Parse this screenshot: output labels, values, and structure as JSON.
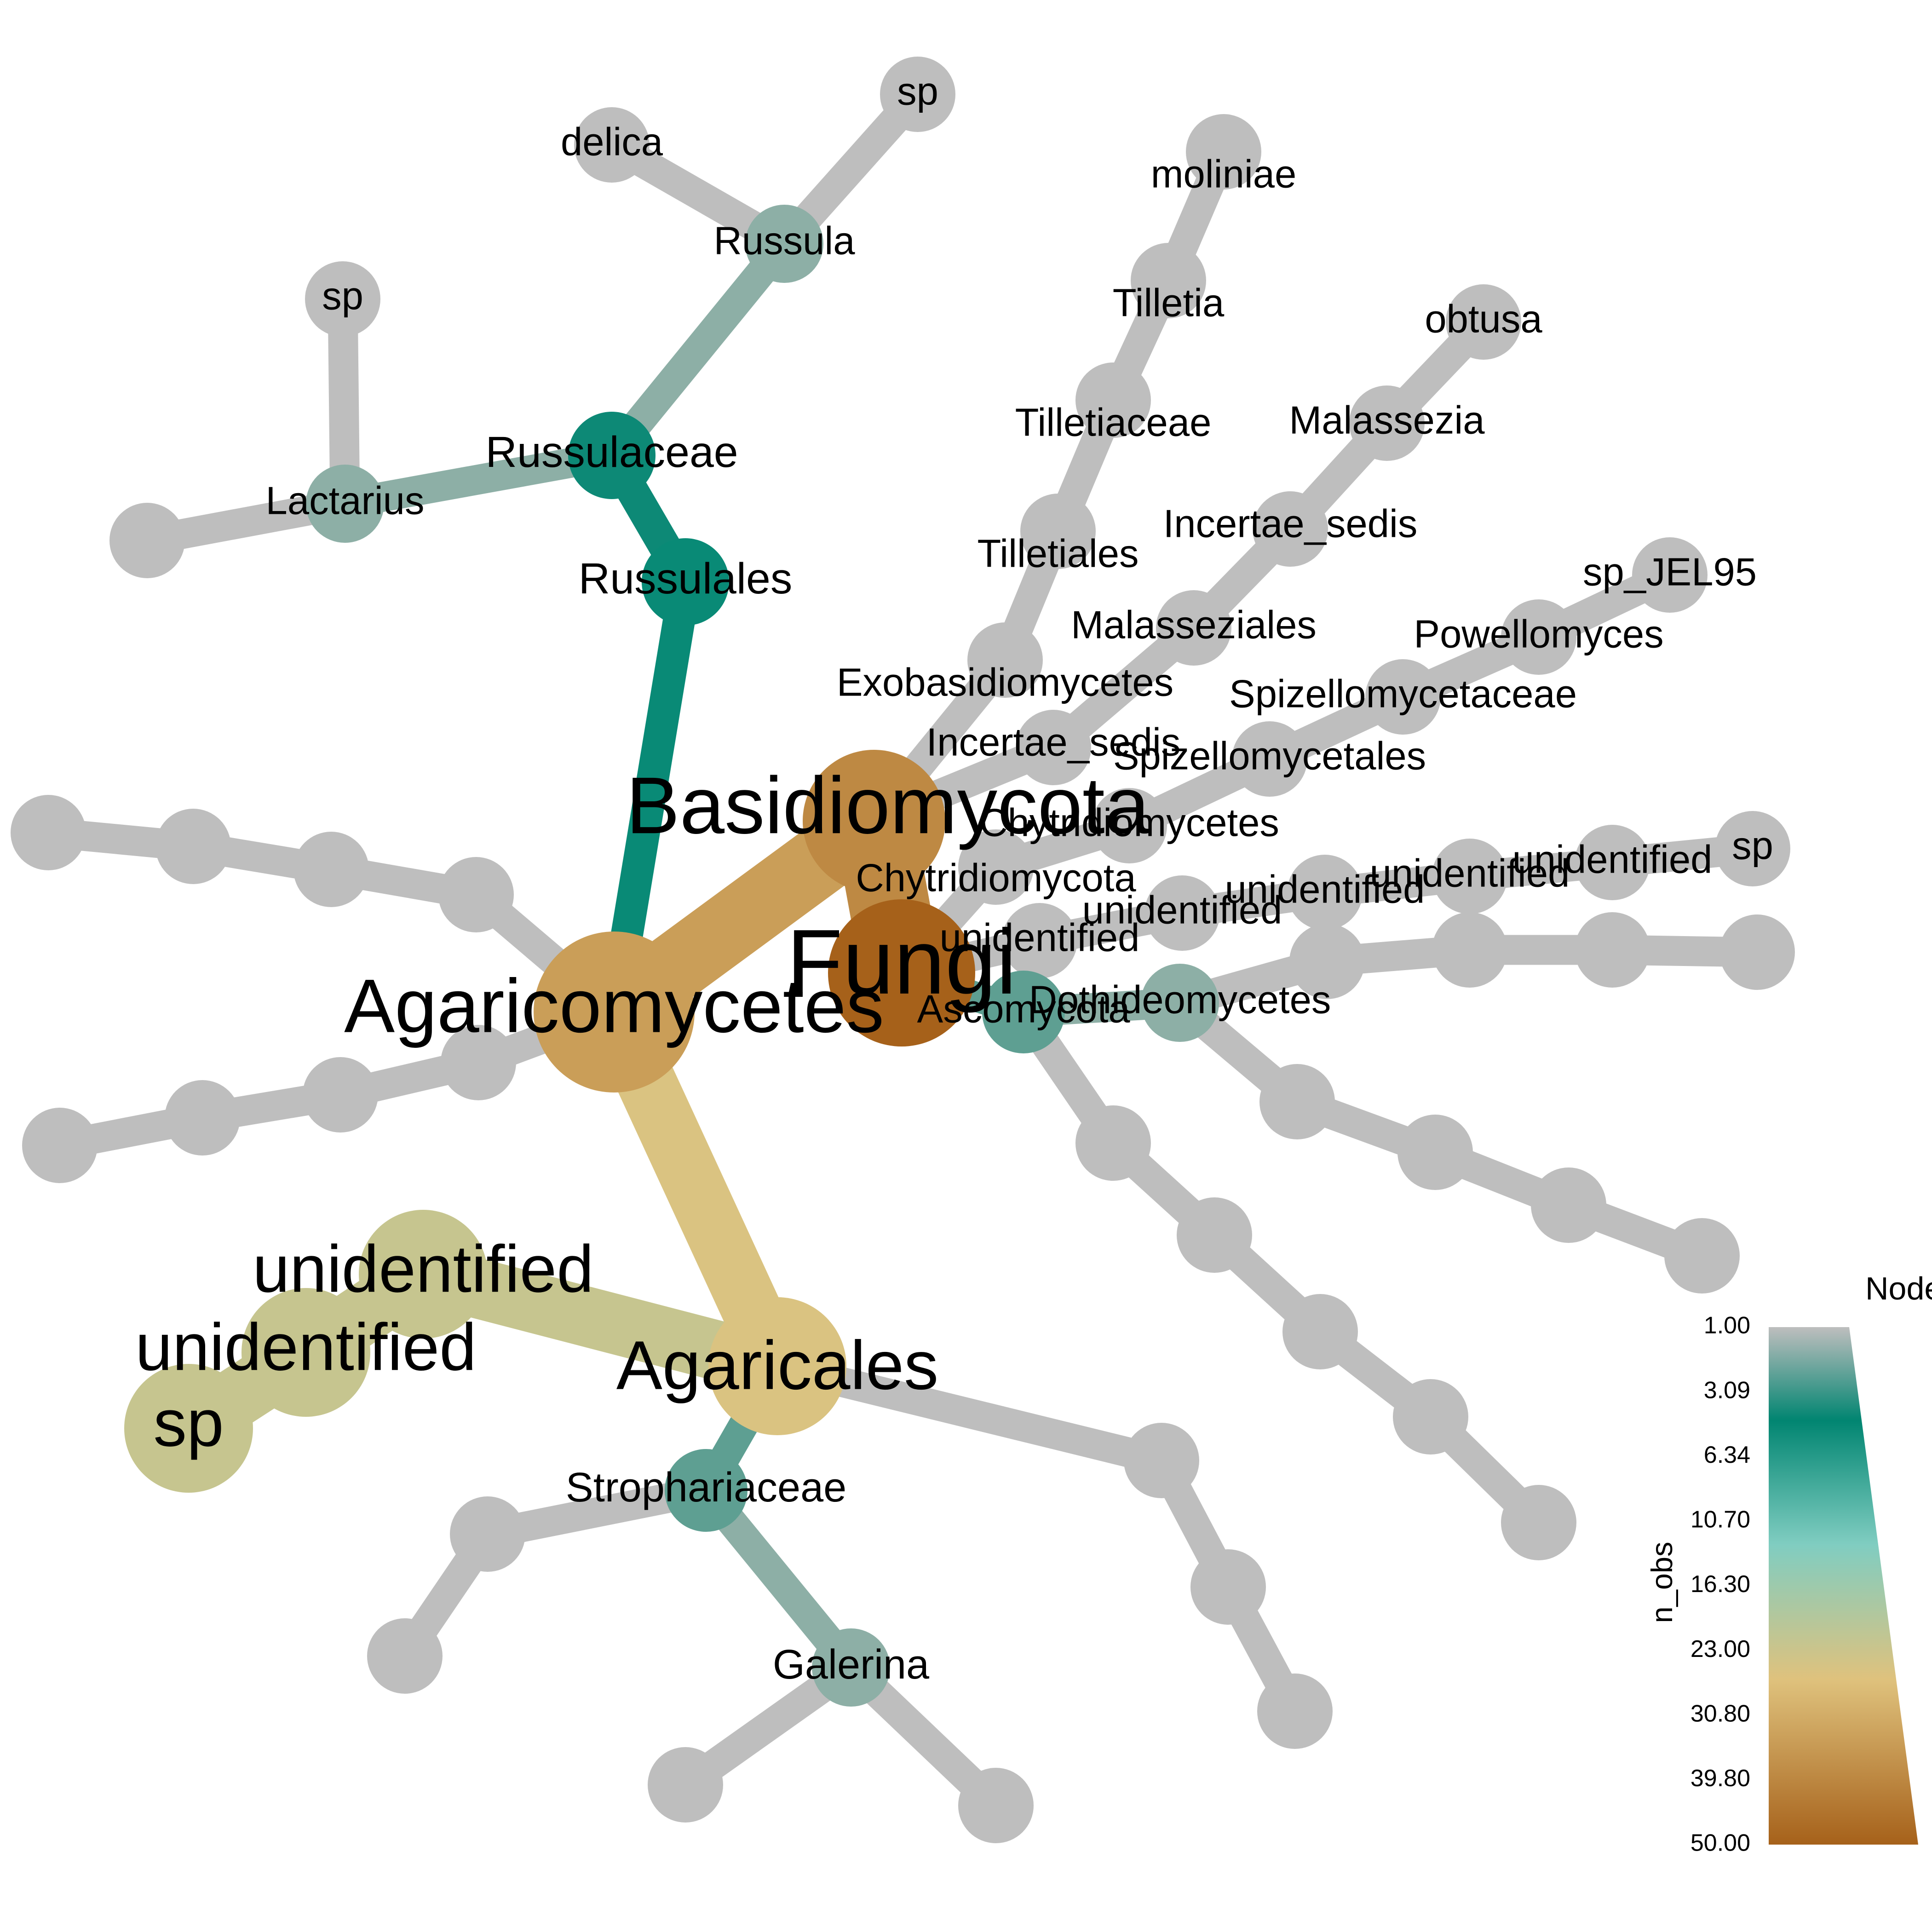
{
  "legend": {
    "title": "Nodes",
    "axis_label": "n_obs",
    "ticks": [
      "1.00",
      "3.09",
      "6.34",
      "10.70",
      "16.30",
      "23.00",
      "30.80",
      "39.80",
      "50.00"
    ],
    "gradient_colors": [
      "#bebebe",
      "#018571",
      "#80cdc1",
      "#dfc27d",
      "#a6611a"
    ]
  },
  "tree": {
    "nodes": [
      {
        "id": "fungi",
        "label": "Fungi",
        "n_obs": 50
      },
      {
        "id": "basidiomycota",
        "label": "Basidiomycota",
        "n_obs": 42
      },
      {
        "id": "agaricomycetes",
        "label": "Agaricomycetes",
        "n_obs": 38
      },
      {
        "id": "agaricales",
        "label": "Agaricales",
        "n_obs": 30
      },
      {
        "id": "unid_fam",
        "label": "unidentified",
        "n_obs": 27
      },
      {
        "id": "unid_gen",
        "label": "unidentified",
        "n_obs": 27
      },
      {
        "id": "sp_big",
        "label": "sp",
        "n_obs": 27
      },
      {
        "id": "russulales",
        "label": "Russulales",
        "n_obs": 7
      },
      {
        "id": "russulaceae",
        "label": "Russulaceae",
        "n_obs": 6
      },
      {
        "id": "russula",
        "label": "Russula",
        "n_obs": 2
      },
      {
        "id": "delica",
        "label": "delica",
        "n_obs": 1
      },
      {
        "id": "russula_sp",
        "label": "sp",
        "n_obs": 1
      },
      {
        "id": "lactarius",
        "label": "Lactarius",
        "n_obs": 2
      },
      {
        "id": "lactarius_sp",
        "label": "sp",
        "n_obs": 1
      },
      {
        "id": "lactarius_x",
        "label": "",
        "n_obs": 1
      },
      {
        "id": "strophariaceae",
        "label": "Strophariaceae",
        "n_obs": 3
      },
      {
        "id": "galerina",
        "label": "Galerina",
        "n_obs": 2
      },
      {
        "id": "galerina_a",
        "label": "",
        "n_obs": 1
      },
      {
        "id": "galerina_b",
        "label": "",
        "n_obs": 1
      },
      {
        "id": "stroph_g1",
        "label": "",
        "n_obs": 1
      },
      {
        "id": "stroph_s1",
        "label": "",
        "n_obs": 1
      },
      {
        "id": "agar_f2",
        "label": "",
        "n_obs": 1
      },
      {
        "id": "agar_g2",
        "label": "",
        "n_obs": 1
      },
      {
        "id": "agar_s2",
        "label": "",
        "n_obs": 1
      },
      {
        "id": "ao1",
        "label": "",
        "n_obs": 1
      },
      {
        "id": "ao2",
        "label": "",
        "n_obs": 1
      },
      {
        "id": "ao3",
        "label": "",
        "n_obs": 1
      },
      {
        "id": "ao4",
        "label": "",
        "n_obs": 1
      },
      {
        "id": "bo1",
        "label": "",
        "n_obs": 1
      },
      {
        "id": "bo2",
        "label": "",
        "n_obs": 1
      },
      {
        "id": "bo3",
        "label": "",
        "n_obs": 1
      },
      {
        "id": "bo4",
        "label": "",
        "n_obs": 1
      },
      {
        "id": "exobasidiomycetes",
        "label": "Exobasidiomycetes",
        "n_obs": 1
      },
      {
        "id": "tilletiales",
        "label": "Tilletiales",
        "n_obs": 1
      },
      {
        "id": "tilletiaceae",
        "label": "Tilletiaceae",
        "n_obs": 1
      },
      {
        "id": "tilletia",
        "label": "Tilletia",
        "n_obs": 1
      },
      {
        "id": "moliniae",
        "label": "moliniae",
        "n_obs": 1
      },
      {
        "id": "incertae_sedis_c",
        "label": "Incertae_sedis",
        "n_obs": 1
      },
      {
        "id": "malasseziales",
        "label": "Malasseziales",
        "n_obs": 1
      },
      {
        "id": "incertae_sedis_f",
        "label": "Incertae_sedis",
        "n_obs": 1
      },
      {
        "id": "malassezia",
        "label": "Malassezia",
        "n_obs": 1
      },
      {
        "id": "obtusa",
        "label": "obtusa",
        "n_obs": 1
      },
      {
        "id": "chytridiomycota",
        "label": "Chytridiomycota",
        "n_obs": 1
      },
      {
        "id": "chytridiomycetes",
        "label": "Chytridiomycetes",
        "n_obs": 1
      },
      {
        "id": "spizellomycetales",
        "label": "Spizellomycetales",
        "n_obs": 1
      },
      {
        "id": "spizellomycetaceae",
        "label": "Spizellomycetaceae",
        "n_obs": 1
      },
      {
        "id": "powellomyces",
        "label": "Powellomyces",
        "n_obs": 1
      },
      {
        "id": "sp_jel95",
        "label": "sp_JEL95",
        "n_obs": 1
      },
      {
        "id": "unid_phylum",
        "label": "unidentified",
        "n_obs": 1
      },
      {
        "id": "unid_class",
        "label": "unidentified",
        "n_obs": 1
      },
      {
        "id": "unid_order",
        "label": "unidentified",
        "n_obs": 1
      },
      {
        "id": "unid_family",
        "label": "unidentified",
        "n_obs": 1
      },
      {
        "id": "unid_genus",
        "label": "unidentified",
        "n_obs": 1
      },
      {
        "id": "unid_sp",
        "label": "sp",
        "n_obs": 1
      },
      {
        "id": "ascomycota",
        "label": "Ascomycota",
        "n_obs": 4
      },
      {
        "id": "dothideomycetes",
        "label": "Dothideomycetes",
        "n_obs": 2
      },
      {
        "id": "r1",
        "label": "",
        "n_obs": 1
      },
      {
        "id": "r2",
        "label": "",
        "n_obs": 1
      },
      {
        "id": "r3",
        "label": "",
        "n_obs": 1
      },
      {
        "id": "r4",
        "label": "",
        "n_obs": 1
      },
      {
        "id": "d1",
        "label": "",
        "n_obs": 1
      },
      {
        "id": "d2",
        "label": "",
        "n_obs": 1
      },
      {
        "id": "d3",
        "label": "",
        "n_obs": 1
      },
      {
        "id": "d4",
        "label": "",
        "n_obs": 1
      },
      {
        "id": "a1",
        "label": "",
        "n_obs": 1
      },
      {
        "id": "a2",
        "label": "",
        "n_obs": 1
      },
      {
        "id": "a3",
        "label": "",
        "n_obs": 1
      },
      {
        "id": "a4",
        "label": "",
        "n_obs": 1
      },
      {
        "id": "a5",
        "label": "",
        "n_obs": 1
      }
    ],
    "edges": [
      [
        "fungi",
        "basidiomycota"
      ],
      [
        "basidiomycota",
        "agaricomycetes"
      ],
      [
        "agaricomycetes",
        "agaricales"
      ],
      [
        "agaricales",
        "unid_fam"
      ],
      [
        "unid_fam",
        "unid_gen"
      ],
      [
        "unid_gen",
        "sp_big"
      ],
      [
        "agaricomycetes",
        "russulales"
      ],
      [
        "russulales",
        "russulaceae"
      ],
      [
        "russulaceae",
        "russula"
      ],
      [
        "russula",
        "delica"
      ],
      [
        "russula",
        "russula_sp"
      ],
      [
        "russulaceae",
        "lactarius"
      ],
      [
        "lactarius",
        "lactarius_sp"
      ],
      [
        "lactarius",
        "lactarius_x"
      ],
      [
        "agaricales",
        "strophariaceae"
      ],
      [
        "strophariaceae",
        "galerina"
      ],
      [
        "galerina",
        "galerina_a"
      ],
      [
        "galerina",
        "galerina_b"
      ],
      [
        "strophariaceae",
        "stroph_g1"
      ],
      [
        "stroph_g1",
        "stroph_s1"
      ],
      [
        "agaricales",
        "agar_f2"
      ],
      [
        "agar_f2",
        "agar_g2"
      ],
      [
        "agar_g2",
        "agar_s2"
      ],
      [
        "agaricomycetes",
        "ao1"
      ],
      [
        "ao1",
        "ao2"
      ],
      [
        "ao2",
        "ao3"
      ],
      [
        "ao3",
        "ao4"
      ],
      [
        "agaricomycetes",
        "bo1"
      ],
      [
        "bo1",
        "bo2"
      ],
      [
        "bo2",
        "bo3"
      ],
      [
        "bo3",
        "bo4"
      ],
      [
        "basidiomycota",
        "exobasidiomycetes"
      ],
      [
        "exobasidiomycetes",
        "tilletiales"
      ],
      [
        "tilletiales",
        "tilletiaceae"
      ],
      [
        "tilletiaceae",
        "tilletia"
      ],
      [
        "tilletia",
        "moliniae"
      ],
      [
        "basidiomycota",
        "incertae_sedis_c"
      ],
      [
        "incertae_sedis_c",
        "malasseziales"
      ],
      [
        "malasseziales",
        "incertae_sedis_f"
      ],
      [
        "incertae_sedis_f",
        "malassezia"
      ],
      [
        "malassezia",
        "obtusa"
      ],
      [
        "fungi",
        "chytridiomycota"
      ],
      [
        "chytridiomycota",
        "chytridiomycetes"
      ],
      [
        "chytridiomycetes",
        "spizellomycetales"
      ],
      [
        "spizellomycetales",
        "spizellomycetaceae"
      ],
      [
        "spizellomycetaceae",
        "powellomyces"
      ],
      [
        "powellomyces",
        "sp_jel95"
      ],
      [
        "fungi",
        "unid_phylum"
      ],
      [
        "unid_phylum",
        "unid_class"
      ],
      [
        "unid_class",
        "unid_order"
      ],
      [
        "unid_order",
        "unid_family"
      ],
      [
        "unid_family",
        "unid_genus"
      ],
      [
        "unid_genus",
        "unid_sp"
      ],
      [
        "fungi",
        "ascomycota"
      ],
      [
        "ascomycota",
        "dothideomycetes"
      ],
      [
        "dothideomycetes",
        "r1"
      ],
      [
        "r1",
        "r2"
      ],
      [
        "r2",
        "r3"
      ],
      [
        "r3",
        "r4"
      ],
      [
        "dothideomycetes",
        "d1"
      ],
      [
        "d1",
        "d2"
      ],
      [
        "d2",
        "d3"
      ],
      [
        "d3",
        "d4"
      ],
      [
        "ascomycota",
        "a1"
      ],
      [
        "a1",
        "a2"
      ],
      [
        "a2",
        "a3"
      ],
      [
        "a3",
        "a4"
      ],
      [
        "a4",
        "a5"
      ]
    ]
  }
}
